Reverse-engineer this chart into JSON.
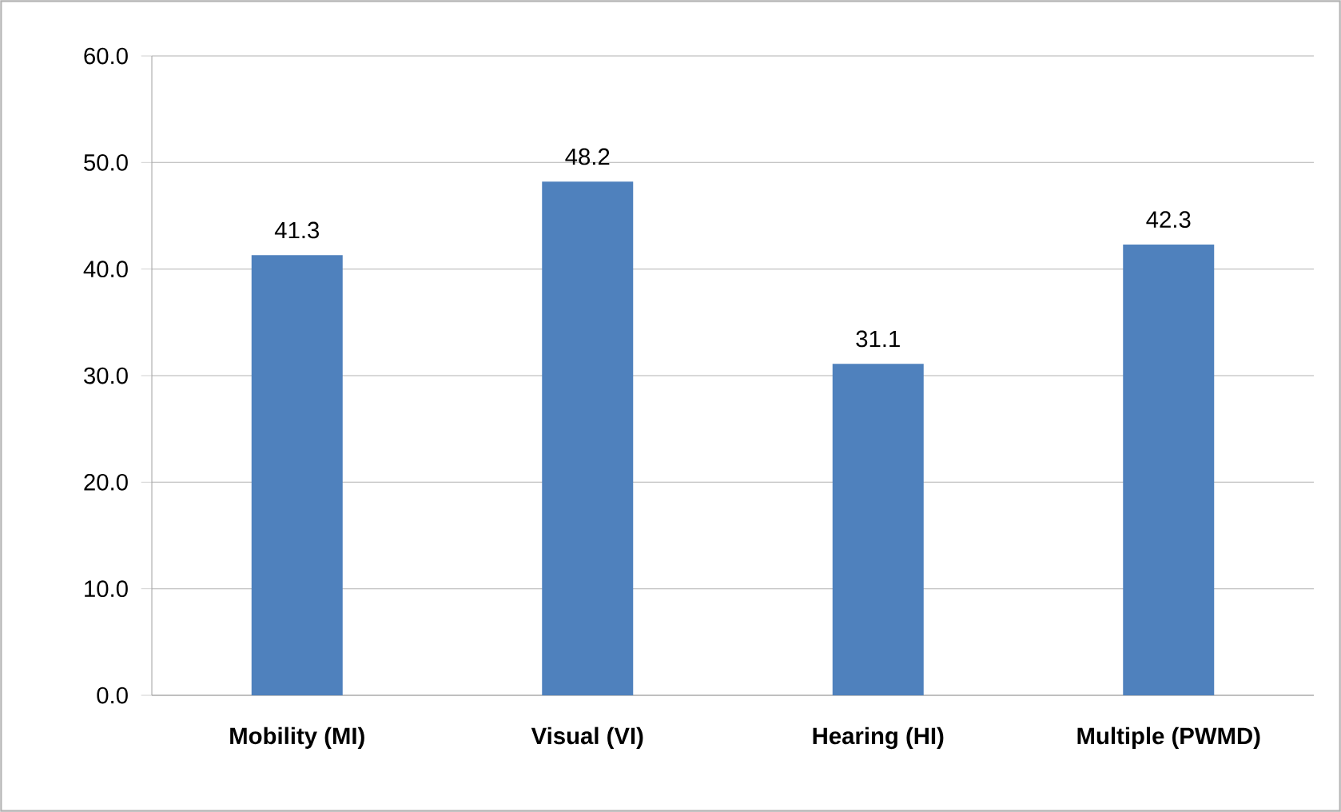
{
  "chart_data": {
    "type": "bar",
    "categories": [
      "Mobility (MI)",
      "Visual (VI)",
      "Hearing (HI)",
      "Multiple (PWMD)"
    ],
    "values": [
      41.3,
      48.2,
      31.1,
      42.3
    ],
    "color": "#4f81bd",
    "ylim": [
      0,
      60
    ],
    "yticks": [
      {
        "value": 0,
        "label": "0.0"
      },
      {
        "value": 10,
        "label": "10.0"
      },
      {
        "value": 20,
        "label": "20.0"
      },
      {
        "value": 30,
        "label": "30.0"
      },
      {
        "value": 40,
        "label": "40.0"
      },
      {
        "value": 50,
        "label": "50.0"
      },
      {
        "value": 60,
        "label": "60.0"
      }
    ],
    "grid": "y",
    "data_labels": true
  }
}
